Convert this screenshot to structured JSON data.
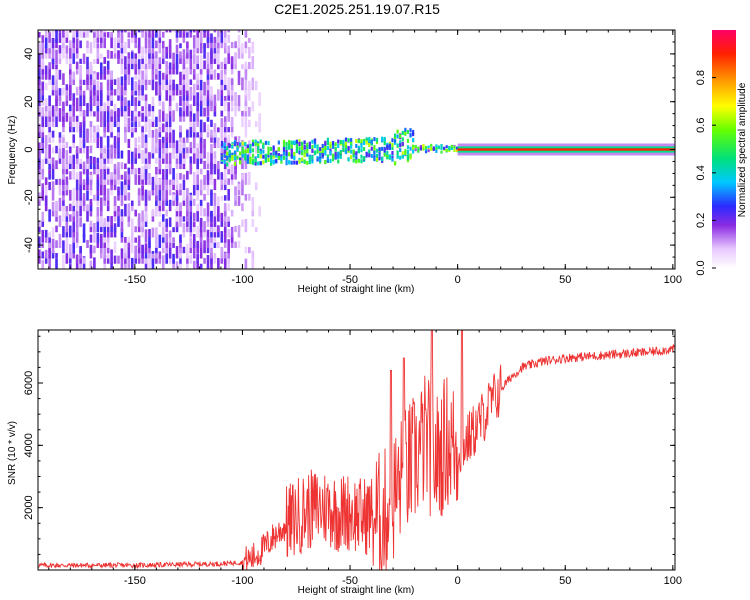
{
  "title": "C2E1.2025.251.19.07.R15",
  "chart_data": [
    {
      "type": "heatmap",
      "name": "spectrogram",
      "xlabel": "Height of straight line (km)",
      "ylabel": "Frequency (Hz)",
      "xlim": [
        -195,
        101
      ],
      "ylim": [
        -50,
        50
      ],
      "xticks": [
        -150,
        -100,
        -50,
        0,
        50,
        100
      ],
      "xtick_labels": [
        "-150",
        "-100",
        "-50",
        "0",
        "50",
        "100"
      ],
      "yticks": [
        -40,
        -20,
        0,
        20,
        40
      ],
      "ytick_labels": [
        "-40",
        "-20",
        "0",
        "20",
        "40"
      ],
      "colorbar": {
        "label": "Normalized spectral amplitude",
        "range": [
          0.0,
          1.0
        ],
        "ticks": [
          0.0,
          0.2,
          0.4,
          0.6,
          0.8
        ],
        "tick_labels": [
          "0.0",
          "0.2",
          "0.4",
          "0.6",
          "0.8"
        ]
      },
      "regions": [
        {
          "description": "noise",
          "x_range": [
            -195,
            -92
          ],
          "freq_spread_hz": 50,
          "amplitude": 0.08
        },
        {
          "description": "transition",
          "x_range": [
            -110,
            -20
          ],
          "freq_spread_hz": 6,
          "amplitude": 0.4
        },
        {
          "description": "stable carrier",
          "x_range": [
            0,
            101
          ],
          "freq_spread_hz": 1,
          "amplitude": 0.9
        }
      ]
    },
    {
      "type": "line",
      "name": "snr",
      "xlabel": "Height of straight line (km)",
      "ylabel": "SNR (10 * v/v)",
      "xlim": [
        -195,
        101
      ],
      "ylim": [
        0,
        7700
      ],
      "xticks": [
        -150,
        -100,
        -50,
        0,
        50,
        100
      ],
      "xtick_labels": [
        "-150",
        "-100",
        "-50",
        "0",
        "50",
        "100"
      ],
      "yticks": [
        2000,
        4000,
        6000
      ],
      "ytick_labels": [
        "2000",
        "4000",
        "6000"
      ],
      "color": "#ee3333",
      "series": [
        {
          "name": "SNR",
          "x": [
            -195,
            -150,
            -110,
            -100,
            -95,
            -90,
            -85,
            -80,
            -75,
            -70,
            -65,
            -60,
            -55,
            -50,
            -45,
            -40,
            -35,
            -30,
            -25,
            -20,
            -15,
            -10,
            -5,
            0,
            5,
            10,
            15,
            20,
            25,
            30,
            40,
            50,
            60,
            70,
            80,
            90,
            101
          ],
          "y": [
            150,
            150,
            200,
            250,
            400,
            700,
            1100,
            1400,
            1700,
            1900,
            2000,
            2000,
            1800,
            1900,
            1700,
            1800,
            1600,
            2300,
            3000,
            3500,
            4200,
            3500,
            4200,
            3800,
            4200,
            4700,
            5300,
            5800,
            6200,
            6500,
            6700,
            6800,
            6850,
            6900,
            6950,
            7000,
            7100
          ]
        }
      ],
      "spread": [
        {
          "x_range": [
            -195,
            -100
          ],
          "amp": 80
        },
        {
          "x_range": [
            -100,
            -80
          ],
          "amp": 500
        },
        {
          "x_range": [
            -80,
            -40
          ],
          "amp": 1300
        },
        {
          "x_range": [
            -40,
            0
          ],
          "amp": 2200
        },
        {
          "x_range": [
            0,
            20
          ],
          "amp": 900
        },
        {
          "x_range": [
            20,
            101
          ],
          "amp": 150
        }
      ],
      "spikes": [
        {
          "x": -31,
          "y": 6400
        },
        {
          "x": -25,
          "y": 6800
        },
        {
          "x": -12,
          "y": 7700
        },
        {
          "x": 2,
          "y": 7700
        }
      ]
    }
  ]
}
